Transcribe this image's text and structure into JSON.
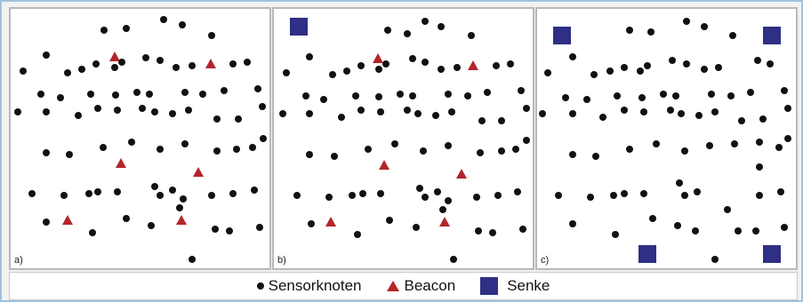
{
  "panels": [
    {
      "label": "a)",
      "sensors": [
        [
          105,
          24
        ],
        [
          130,
          22
        ],
        [
          172,
          12
        ],
        [
          193,
          18
        ],
        [
          226,
          30
        ],
        [
          40,
          52
        ],
        [
          14,
          70
        ],
        [
          64,
          72
        ],
        [
          80,
          68
        ],
        [
          96,
          62
        ],
        [
          117,
          66
        ],
        [
          125,
          60
        ],
        [
          152,
          55
        ],
        [
          168,
          58
        ],
        [
          186,
          66
        ],
        [
          204,
          64
        ],
        [
          250,
          62
        ],
        [
          266,
          60
        ],
        [
          34,
          96
        ],
        [
          56,
          100
        ],
        [
          90,
          96
        ],
        [
          118,
          97
        ],
        [
          142,
          94
        ],
        [
          156,
          96
        ],
        [
          196,
          94
        ],
        [
          216,
          96
        ],
        [
          240,
          92
        ],
        [
          278,
          90
        ],
        [
          8,
          116
        ],
        [
          40,
          116
        ],
        [
          76,
          120
        ],
        [
          98,
          112
        ],
        [
          120,
          114
        ],
        [
          148,
          112
        ],
        [
          162,
          116
        ],
        [
          182,
          118
        ],
        [
          200,
          114
        ],
        [
          232,
          124
        ],
        [
          256,
          124
        ],
        [
          283,
          110
        ],
        [
          40,
          162
        ],
        [
          66,
          164
        ],
        [
          104,
          156
        ],
        [
          136,
          150
        ],
        [
          168,
          158
        ],
        [
          196,
          152
        ],
        [
          232,
          160
        ],
        [
          254,
          158
        ],
        [
          272,
          156
        ],
        [
          284,
          146
        ],
        [
          24,
          208
        ],
        [
          60,
          210
        ],
        [
          88,
          208
        ],
        [
          98,
          206
        ],
        [
          120,
          206
        ],
        [
          162,
          200
        ],
        [
          168,
          210
        ],
        [
          182,
          204
        ],
        [
          194,
          214
        ],
        [
          226,
          210
        ],
        [
          250,
          208
        ],
        [
          274,
          204
        ],
        [
          40,
          240
        ],
        [
          92,
          252
        ],
        [
          130,
          236
        ],
        [
          158,
          244
        ],
        [
          190,
          224
        ],
        [
          230,
          248
        ],
        [
          246,
          250
        ],
        [
          280,
          246
        ],
        [
          204,
          282
        ]
      ],
      "beacons": [
        [
          117,
          54
        ],
        [
          225,
          62
        ],
        [
          124,
          174
        ],
        [
          211,
          184
        ],
        [
          64,
          238
        ],
        [
          192,
          238
        ]
      ],
      "sinks": []
    },
    {
      "label": "b)",
      "sensors": [
        [
          128,
          24
        ],
        [
          150,
          28
        ],
        [
          170,
          14
        ],
        [
          188,
          20
        ],
        [
          222,
          30
        ],
        [
          40,
          54
        ],
        [
          14,
          72
        ],
        [
          66,
          74
        ],
        [
          82,
          70
        ],
        [
          98,
          64
        ],
        [
          118,
          68
        ],
        [
          126,
          62
        ],
        [
          156,
          56
        ],
        [
          170,
          60
        ],
        [
          188,
          68
        ],
        [
          206,
          66
        ],
        [
          250,
          64
        ],
        [
          266,
          62
        ],
        [
          36,
          98
        ],
        [
          56,
          102
        ],
        [
          92,
          98
        ],
        [
          118,
          99
        ],
        [
          142,
          96
        ],
        [
          156,
          98
        ],
        [
          196,
          96
        ],
        [
          218,
          98
        ],
        [
          240,
          94
        ],
        [
          278,
          92
        ],
        [
          10,
          118
        ],
        [
          40,
          118
        ],
        [
          76,
          122
        ],
        [
          98,
          114
        ],
        [
          120,
          116
        ],
        [
          150,
          114
        ],
        [
          162,
          118
        ],
        [
          182,
          120
        ],
        [
          200,
          116
        ],
        [
          234,
          126
        ],
        [
          256,
          126
        ],
        [
          284,
          112
        ],
        [
          40,
          164
        ],
        [
          68,
          166
        ],
        [
          106,
          158
        ],
        [
          136,
          152
        ],
        [
          168,
          160
        ],
        [
          196,
          154
        ],
        [
          232,
          162
        ],
        [
          256,
          160
        ],
        [
          272,
          158
        ],
        [
          284,
          148
        ],
        [
          26,
          210
        ],
        [
          62,
          212
        ],
        [
          88,
          210
        ],
        [
          100,
          208
        ],
        [
          120,
          208
        ],
        [
          164,
          202
        ],
        [
          170,
          212
        ],
        [
          184,
          206
        ],
        [
          196,
          216
        ],
        [
          228,
          212
        ],
        [
          252,
          210
        ],
        [
          274,
          206
        ],
        [
          42,
          242
        ],
        [
          94,
          254
        ],
        [
          130,
          238
        ],
        [
          160,
          246
        ],
        [
          190,
          226
        ],
        [
          230,
          250
        ],
        [
          246,
          252
        ],
        [
          280,
          248
        ],
        [
          202,
          282
        ]
      ],
      "beacons": [
        [
          117,
          56
        ],
        [
          224,
          64
        ],
        [
          124,
          176
        ],
        [
          211,
          186
        ],
        [
          64,
          240
        ],
        [
          192,
          240
        ]
      ],
      "sinks": [
        [
          28,
          20
        ]
      ]
    },
    {
      "label": "c)",
      "sensors": [
        [
          104,
          24
        ],
        [
          128,
          26
        ],
        [
          168,
          14
        ],
        [
          188,
          20
        ],
        [
          220,
          30
        ],
        [
          40,
          54
        ],
        [
          12,
          72
        ],
        [
          64,
          74
        ],
        [
          82,
          70
        ],
        [
          98,
          66
        ],
        [
          116,
          70
        ],
        [
          124,
          64
        ],
        [
          152,
          58
        ],
        [
          168,
          62
        ],
        [
          188,
          68
        ],
        [
          204,
          66
        ],
        [
          248,
          58
        ],
        [
          262,
          62
        ],
        [
          32,
          100
        ],
        [
          56,
          102
        ],
        [
          90,
          98
        ],
        [
          118,
          100
        ],
        [
          142,
          96
        ],
        [
          156,
          98
        ],
        [
          196,
          96
        ],
        [
          218,
          98
        ],
        [
          240,
          94
        ],
        [
          278,
          92
        ],
        [
          6,
          118
        ],
        [
          40,
          118
        ],
        [
          74,
          122
        ],
        [
          98,
          114
        ],
        [
          120,
          116
        ],
        [
          150,
          114
        ],
        [
          162,
          118
        ],
        [
          182,
          120
        ],
        [
          200,
          116
        ],
        [
          230,
          126
        ],
        [
          254,
          124
        ],
        [
          282,
          112
        ],
        [
          40,
          164
        ],
        [
          66,
          166
        ],
        [
          104,
          158
        ],
        [
          134,
          152
        ],
        [
          166,
          160
        ],
        [
          194,
          154
        ],
        [
          222,
          152
        ],
        [
          250,
          150
        ],
        [
          272,
          156
        ],
        [
          282,
          146
        ],
        [
          24,
          210
        ],
        [
          60,
          212
        ],
        [
          86,
          210
        ],
        [
          98,
          208
        ],
        [
          120,
          208
        ],
        [
          160,
          196
        ],
        [
          166,
          210
        ],
        [
          180,
          206
        ],
        [
          214,
          226
        ],
        [
          250,
          210
        ],
        [
          274,
          206
        ],
        [
          40,
          242
        ],
        [
          88,
          254
        ],
        [
          130,
          236
        ],
        [
          158,
          244
        ],
        [
          178,
          250
        ],
        [
          226,
          250
        ],
        [
          246,
          250
        ],
        [
          278,
          246
        ],
        [
          200,
          282
        ],
        [
          250,
          178
        ]
      ],
      "beacons": [],
      "sinks": [
        [
          28,
          30
        ],
        [
          264,
          30
        ],
        [
          124,
          276
        ],
        [
          264,
          276
        ]
      ]
    }
  ],
  "legend": {
    "sensor_label": "Sensorknoten",
    "beacon_label": "Beacon",
    "sink_label": "Senke"
  },
  "colors": {
    "sensor": "#111111",
    "beacon": "#b2262a",
    "sink": "#2e2f85"
  }
}
